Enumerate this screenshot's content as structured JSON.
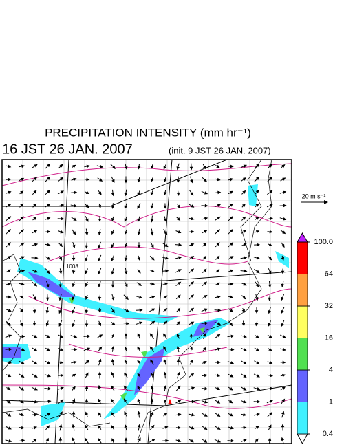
{
  "header": {
    "title": "PRECIPITATION INTENSITY (mm hr⁻¹)",
    "valid_time": "16 JST 26 JAN. 2007",
    "init_time": "(init. 9 JST 26 JAN. 2007)"
  },
  "map": {
    "isobar_label": "1008",
    "vector_scale_label": "20 m s⁻¹"
  },
  "colorbar": {
    "levels": [
      0.4,
      1.0,
      4.0,
      16.0,
      32.0,
      64.0,
      {
        "value": 100,
        "label": "100.0"
      }
    ],
    "under_color": "#ffffff",
    "colors": [
      "#40f0ff",
      "#6464ff",
      "#50e050",
      "#ffff60",
      "#ffa040",
      "#ff0000"
    ],
    "over_color": "#c020ff"
  }
}
